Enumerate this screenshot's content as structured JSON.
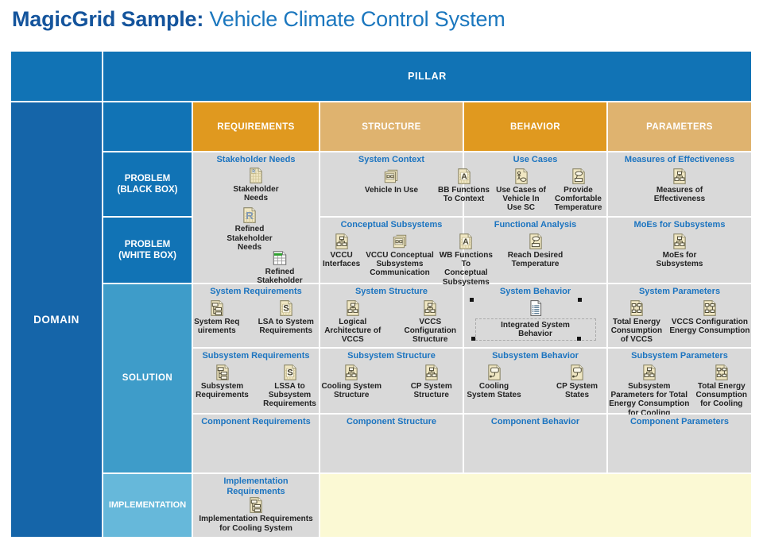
{
  "title": {
    "prefix": "MagicGrid Sample:",
    "rest": " Vehicle Climate Control System"
  },
  "grid": {
    "pillar_label": "PILLAR",
    "domain_label": "DOMAIN",
    "column_headers": [
      "REQUIREMENTS",
      "STRUCTURE",
      "BEHAVIOR",
      "PARAMETERS"
    ],
    "row_labels": {
      "problem_black": "PROBLEM (BLACK BOX)",
      "problem_white": "PROBLEM (WHITE BOX)",
      "solution": "SOLUTION",
      "implementation": "IMPLEMENTATION"
    }
  },
  "colors": {
    "title_brand_blue": "#14549C",
    "title_text_blue": "#1B77BE",
    "pillar_blue": "#1173B5",
    "domain_blue": "#1565A9",
    "solution_blue": "#3E9CC9",
    "implementation_blue": "#66B8DA",
    "header_orange_dark": "#E0991F",
    "header_orange_light": "#DFB36F",
    "cell_grey": "#D9D9D9",
    "implementation_yellow": "#FBF9D4",
    "cell_heading_blue": "#1B74C0"
  },
  "cells": [
    {
      "id": "stakeholder-needs",
      "heading": "Stakeholder Needs",
      "items": [
        {
          "label": "Stakeholder Needs",
          "icon": "table-r"
        },
        {
          "label": "Refined Stakeholder Needs",
          "icon": "letter-r"
        },
        {
          "label": "Refined Stakeholder Needs",
          "icon": "green-table"
        }
      ]
    },
    {
      "id": "system-context",
      "heading": "System Context",
      "items": [
        {
          "label": "Vehicle In Use",
          "icon": "ibd"
        }
      ]
    },
    {
      "id": "use-cases",
      "heading": "Use Cases",
      "items": [
        {
          "label": "BB Functions To Context",
          "icon": "matrix-a"
        },
        {
          "label": "Use Cases of Vehicle In Use SC",
          "icon": "usecase-diagram"
        },
        {
          "label": "Provide Comfortable Temperature",
          "icon": "usecase"
        }
      ]
    },
    {
      "id": "measures-of-effectiveness",
      "heading": "Measures of Effectiveness",
      "items": [
        {
          "label": "Measures of Effectiveness",
          "icon": "bdd"
        }
      ]
    },
    {
      "id": "conceptual-subsystems",
      "heading": "Conceptual Subsystems",
      "items": [
        {
          "label": "VCCU Interfaces",
          "icon": "bdd"
        },
        {
          "label": "VCCU Conceptual Subsystems Communication",
          "icon": "ibd"
        },
        {
          "label": "WB Functions To Conceptual Subsystems",
          "icon": "matrix-a"
        }
      ]
    },
    {
      "id": "functional-analysis",
      "heading": "Functional Analysis",
      "items": [
        {
          "label": "Reach Desired Temperature",
          "icon": "usecase"
        }
      ]
    },
    {
      "id": "moes-for-subsystems",
      "heading": "MoEs for Subsystems",
      "items": [
        {
          "label": "MoEs for Subsystems",
          "icon": "bdd"
        }
      ]
    },
    {
      "id": "system-requirements",
      "heading": "System Requirements",
      "items": [
        {
          "label": "System Requirements",
          "icon": "req"
        },
        {
          "label": "LSA to System Requirements",
          "icon": "table-s"
        }
      ]
    },
    {
      "id": "system-structure",
      "heading": "System Structure",
      "items": [
        {
          "label": "Logical Architecture of VCCS",
          "icon": "bdd"
        },
        {
          "label": "VCCS Configuration Structure",
          "icon": "bdd"
        }
      ]
    },
    {
      "id": "system-behavior",
      "heading": "System Behavior",
      "selected": true,
      "items": [
        {
          "label": "Integrated System Behavior",
          "icon": "doc-lines"
        }
      ]
    },
    {
      "id": "system-parameters",
      "heading": "System Parameters",
      "items": [
        {
          "label": "Total Energy Consumption of VCCS",
          "icon": "par"
        },
        {
          "label": "VCCS Configuration Energy Consumption",
          "icon": "par"
        }
      ]
    },
    {
      "id": "subsystem-requirements",
      "heading": "Subsystem Requirements",
      "items": [
        {
          "label": "Subsystem Requirements",
          "icon": "req"
        },
        {
          "label": "LSSA to Subsystem Requirements",
          "icon": "table-s"
        }
      ]
    },
    {
      "id": "subsystem-structure",
      "heading": "Subsystem Structure",
      "items": [
        {
          "label": "Cooling System Structure",
          "icon": "bdd"
        },
        {
          "label": "CP System Structure",
          "icon": "bdd"
        }
      ]
    },
    {
      "id": "subsystem-behavior",
      "heading": "Subsystem Behavior",
      "items": [
        {
          "label": "Cooling System States",
          "icon": "state"
        },
        {
          "label": "CP System States",
          "icon": "state"
        }
      ]
    },
    {
      "id": "subsystem-parameters",
      "heading": "Subsystem Parameters",
      "items": [
        {
          "label": "Subsystem Parameters for Total Energy Consumption for Cooling",
          "icon": "bdd"
        },
        {
          "label": "Total Energy Consumption for Cooling",
          "icon": "par"
        }
      ]
    },
    {
      "id": "component-requirements",
      "heading": "Component Requirements",
      "items": []
    },
    {
      "id": "component-structure",
      "heading": "Component Structure",
      "items": []
    },
    {
      "id": "component-behavior",
      "heading": "Component Behavior",
      "items": []
    },
    {
      "id": "component-parameters",
      "heading": "Component Parameters",
      "items": []
    },
    {
      "id": "implementation-requirements",
      "heading": "Implementation Requirements",
      "items": [
        {
          "label": "Implementation Requirements for Cooling System",
          "icon": "req"
        }
      ]
    }
  ]
}
